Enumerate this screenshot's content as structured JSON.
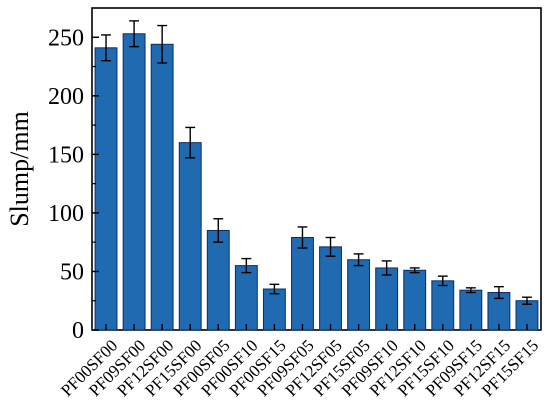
{
  "chart_data": {
    "type": "bar",
    "categories": [
      "PF00SF00",
      "PF09SF00",
      "PF12SF00",
      "PF15SF00",
      "PF00SF05",
      "PF00SF10",
      "PF00SF15",
      "PF09SF05",
      "PF12SF05",
      "PF15SF05",
      "PF09SF10",
      "PF12SF10",
      "PF15SF10",
      "PF09SF15",
      "PF12SF15",
      "PF15SF15"
    ],
    "values": [
      241,
      253,
      244,
      160,
      85,
      55,
      35,
      79,
      71,
      60,
      53,
      51,
      42,
      34,
      32,
      25
    ],
    "errors": [
      11,
      11,
      16,
      13,
      10,
      6,
      4,
      9,
      8,
      5,
      6,
      2,
      4,
      2,
      5,
      3
    ],
    "title": "",
    "xlabel": "",
    "ylabel": "Slump/mm",
    "ylim": [
      0,
      275
    ],
    "yticks": [
      0,
      50,
      100,
      150,
      200,
      250
    ],
    "grid": false,
    "legend": "none",
    "bar_color": "#1f6ab1",
    "bar_edge_color": "#0a2f66",
    "error_color": "#000000"
  }
}
